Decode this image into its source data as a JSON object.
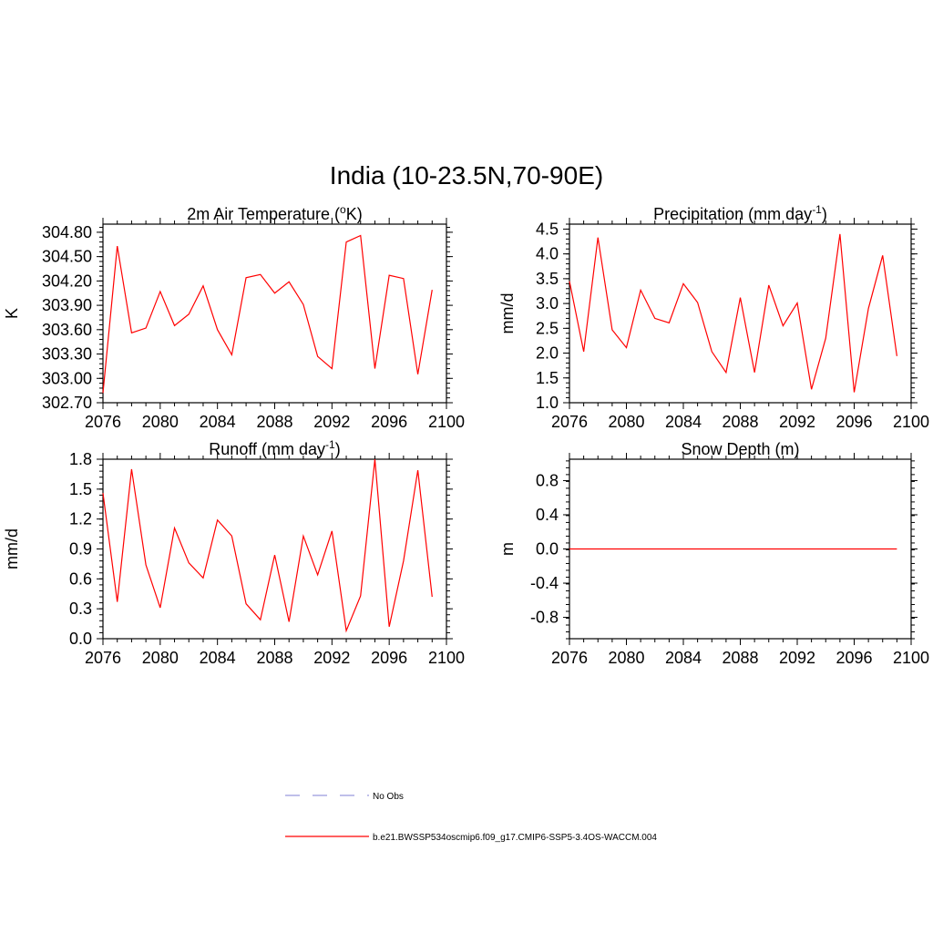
{
  "page": {
    "title": "India (10-23.5N,70-90E)"
  },
  "legend": {
    "items": [
      {
        "label": "No Obs",
        "color": "#9999dd",
        "dashed": true
      },
      {
        "label": "b.e21.BWSSP534oscmip6.f09_g17.CMIP6-SSP5-3.4OS-WACCM.004",
        "color": "#ff0000",
        "dashed": false
      }
    ]
  },
  "chart_data": [
    {
      "type": "line",
      "title_main": "2m Air Temperature (",
      "title_sup": "o",
      "title_tail": "K)",
      "ylabel": "K",
      "xlim": [
        2076,
        2100
      ],
      "ylim": [
        302.7,
        304.9
      ],
      "xticks": [
        2076,
        2080,
        2084,
        2088,
        2092,
        2096,
        2100
      ],
      "yticks": [
        302.7,
        303.0,
        303.3,
        303.6,
        303.9,
        304.2,
        304.5,
        304.8
      ],
      "ytick_labels": [
        "302.70",
        "303.00",
        "303.30",
        "303.60",
        "303.90",
        "304.20",
        "304.50",
        "304.80"
      ],
      "series": [
        {
          "color": "#ff0000",
          "x": [
            2076,
            2077,
            2078,
            2079,
            2080,
            2081,
            2082,
            2083,
            2084,
            2085,
            2086,
            2087,
            2088,
            2089,
            2090,
            2091,
            2092,
            2093,
            2094,
            2095,
            2096,
            2097,
            2098,
            2099
          ],
          "y": [
            302.82,
            304.63,
            303.56,
            303.62,
            304.07,
            303.65,
            303.79,
            304.14,
            303.6,
            303.29,
            304.24,
            304.28,
            304.05,
            304.19,
            303.91,
            303.27,
            303.12,
            304.68,
            304.76,
            303.12,
            304.27,
            304.23,
            303.05,
            304.09
          ]
        }
      ]
    },
    {
      "type": "line",
      "title_main": "Precipitation (mm day",
      "title_sup": "-1",
      "title_tail": ")",
      "ylabel": "mm/d",
      "xlim": [
        2076,
        2100
      ],
      "ylim": [
        1.0,
        4.6
      ],
      "xticks": [
        2076,
        2080,
        2084,
        2088,
        2092,
        2096,
        2100
      ],
      "yticks": [
        1.0,
        1.5,
        2.0,
        2.5,
        3.0,
        3.5,
        4.0,
        4.5
      ],
      "ytick_labels": [
        "1.0",
        "1.5",
        "2.0",
        "2.5",
        "3.0",
        "3.5",
        "4.0",
        "4.5"
      ],
      "series": [
        {
          "color": "#ff0000",
          "x": [
            2076,
            2077,
            2078,
            2079,
            2080,
            2081,
            2082,
            2083,
            2084,
            2085,
            2086,
            2087,
            2088,
            2089,
            2090,
            2091,
            2092,
            2093,
            2094,
            2095,
            2096,
            2097,
            2098,
            2099
          ],
          "y": [
            3.45,
            2.03,
            4.33,
            2.47,
            2.11,
            3.27,
            2.7,
            2.61,
            3.4,
            3.02,
            2.03,
            1.61,
            3.12,
            1.61,
            3.37,
            2.55,
            3.01,
            1.27,
            2.3,
            4.4,
            1.21,
            2.9,
            3.97,
            1.94
          ]
        }
      ]
    },
    {
      "type": "line",
      "title_main": "Runoff (mm day",
      "title_sup": "-1",
      "title_tail": ")",
      "ylabel": "mm/d",
      "xlim": [
        2076,
        2100
      ],
      "ylim": [
        0.0,
        1.8
      ],
      "xticks": [
        2076,
        2080,
        2084,
        2088,
        2092,
        2096,
        2100
      ],
      "yticks": [
        0.0,
        0.3,
        0.6,
        0.9,
        1.2,
        1.5,
        1.8
      ],
      "ytick_labels": [
        "0.0",
        "0.3",
        "0.6",
        "0.9",
        "1.2",
        "1.5",
        "1.8"
      ],
      "series": [
        {
          "color": "#ff0000",
          "x": [
            2076,
            2077,
            2078,
            2079,
            2080,
            2081,
            2082,
            2083,
            2084,
            2085,
            2086,
            2087,
            2088,
            2089,
            2090,
            2091,
            2092,
            2093,
            2094,
            2095,
            2096,
            2097,
            2098,
            2099
          ],
          "y": [
            1.46,
            0.37,
            1.7,
            0.74,
            0.31,
            1.11,
            0.76,
            0.61,
            1.19,
            1.03,
            0.35,
            0.19,
            0.84,
            0.17,
            1.03,
            0.64,
            1.08,
            0.08,
            0.43,
            1.8,
            0.12,
            0.78,
            1.69,
            0.42
          ]
        }
      ]
    },
    {
      "type": "line",
      "title_main": "Snow Depth (m)",
      "title_sup": "",
      "title_tail": "",
      "ylabel": "m",
      "xlim": [
        2076,
        2100
      ],
      "ylim": [
        -1.05,
        1.05
      ],
      "xticks": [
        2076,
        2080,
        2084,
        2088,
        2092,
        2096,
        2100
      ],
      "yticks": [
        -0.8,
        -0.4,
        0.0,
        0.4,
        0.8
      ],
      "ytick_labels": [
        "-0.8",
        "-0.4",
        "0.0",
        "0.4",
        "0.8"
      ],
      "series": [
        {
          "color": "#ff0000",
          "x": [
            2076,
            2077,
            2078,
            2079,
            2080,
            2081,
            2082,
            2083,
            2084,
            2085,
            2086,
            2087,
            2088,
            2089,
            2090,
            2091,
            2092,
            2093,
            2094,
            2095,
            2096,
            2097,
            2098,
            2099
          ],
          "y": [
            0,
            0,
            0,
            0,
            0,
            0,
            0,
            0,
            0,
            0,
            0,
            0,
            0,
            0,
            0,
            0,
            0,
            0,
            0,
            0,
            0,
            0,
            0,
            0
          ]
        }
      ]
    }
  ]
}
